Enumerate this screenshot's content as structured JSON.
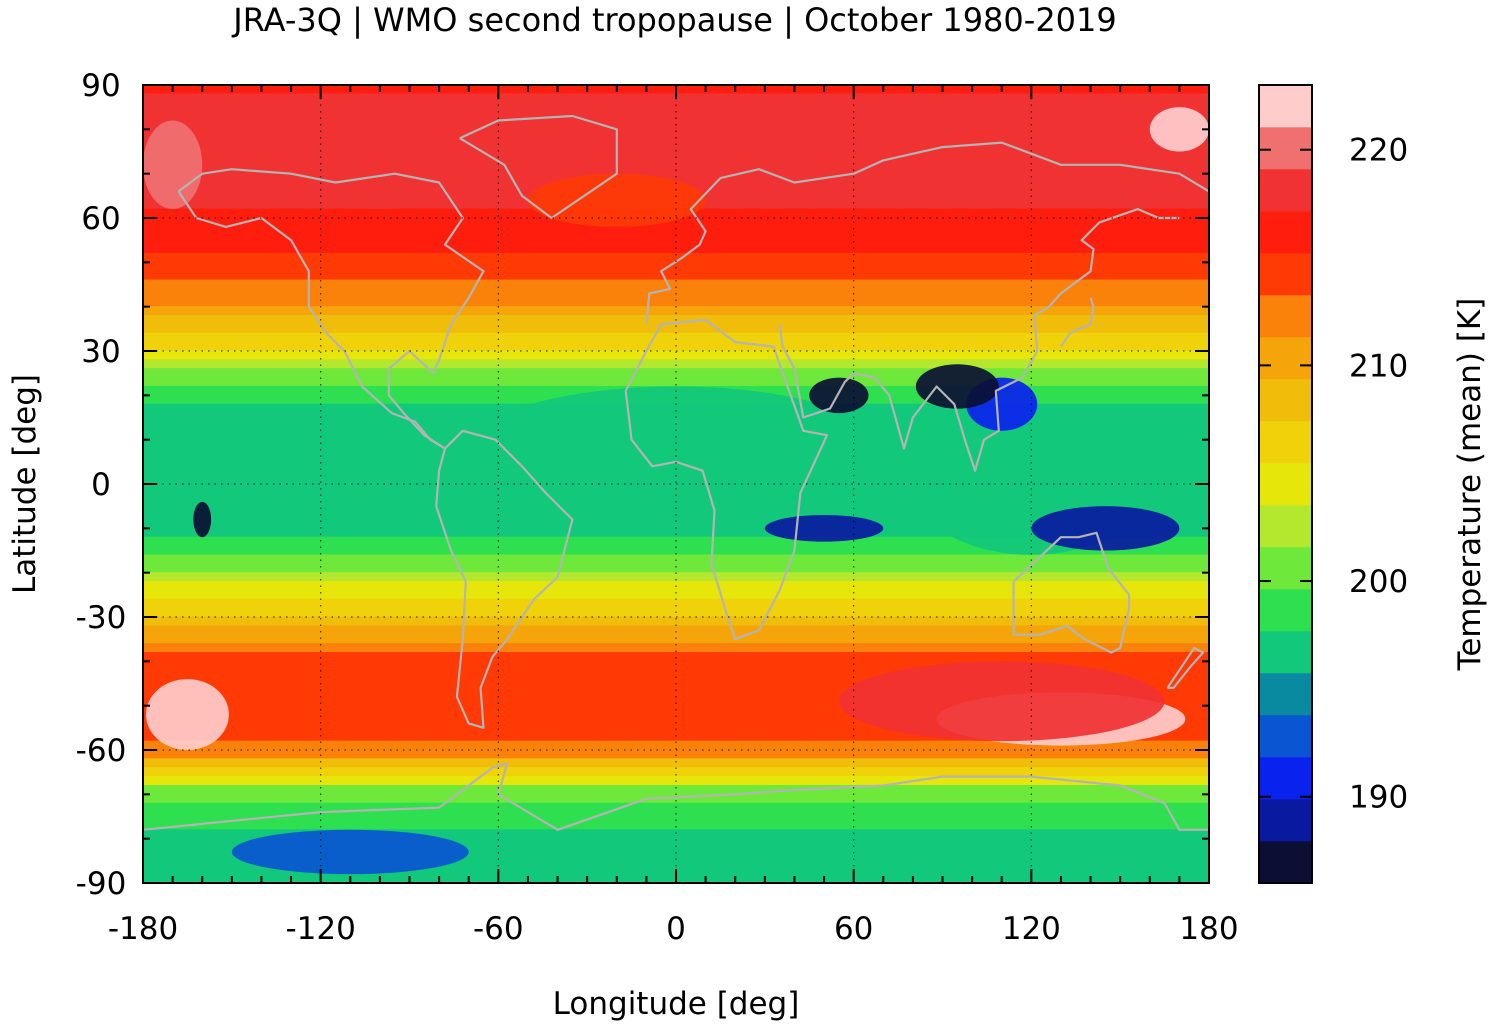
{
  "chart_data": {
    "type": "heatmap",
    "title": "JRA-3Q | WMO second tropopause | October 1980-2019",
    "xlabel": "Longitude [deg]",
    "ylabel": "Latitude [deg]",
    "colorbar_label": "Temperature (mean) [K]",
    "xlim": [
      -180,
      180
    ],
    "ylim": [
      -90,
      90
    ],
    "xticks": [
      -180,
      -120,
      -60,
      0,
      60,
      120,
      180
    ],
    "yticks": [
      90,
      60,
      30,
      0,
      -30,
      -60,
      -90
    ],
    "colorbar_range": [
      186,
      223
    ],
    "colorbar_ticks": [
      190,
      200,
      210,
      220
    ],
    "colorbar_colors": [
      "#0b0f33",
      "#0a1aa0",
      "#0a22ee",
      "#0a55d2",
      "#0a8aa0",
      "#12c87a",
      "#2ee050",
      "#6ee83a",
      "#b4e82e",
      "#e6e60a",
      "#f0d20a",
      "#f0be0a",
      "#f5a50a",
      "#fa820a",
      "#ff3a05",
      "#ff1e0e",
      "#f03232",
      "#f07070",
      "#ffcccc"
    ],
    "grid": true,
    "coastlines_color": "#b4b4b4",
    "zonal_mean_profile": {
      "lat": [
        -90,
        -80,
        -70,
        -60,
        -50,
        -40,
        -30,
        -20,
        -10,
        0,
        10,
        20,
        30,
        40,
        50,
        60,
        70,
        80,
        90
      ],
      "temperature": [
        196,
        197,
        200,
        213,
        215,
        214,
        208,
        202,
        197,
        196,
        196,
        198,
        205,
        211,
        215,
        217,
        218,
        218,
        217
      ]
    }
  }
}
